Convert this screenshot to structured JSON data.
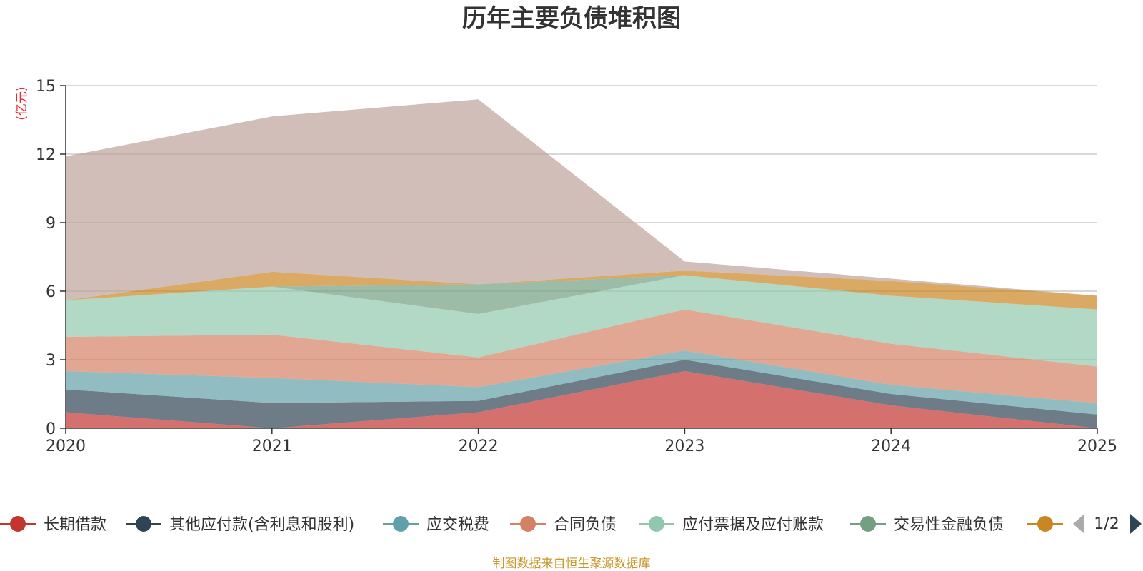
{
  "chart_data": {
    "type": "area",
    "stacked": true,
    "title": "历年主要负债堆积图",
    "unit_label": "(亿元)",
    "x": [
      "2020",
      "2021",
      "2022",
      "2023",
      "2024",
      "2025"
    ],
    "yticks": [
      "0",
      "3",
      "6",
      "9",
      "12",
      "15"
    ],
    "ylim": [
      0,
      15
    ],
    "grid": true,
    "series": [
      {
        "name": "长期借款",
        "color": "#c23531",
        "values": [
          0.7,
          0.0,
          0.7,
          2.5,
          1.0,
          0.0
        ]
      },
      {
        "name": "其他应付款(含利息和股利)",
        "color": "#2f4554",
        "values": [
          1.0,
          1.1,
          0.5,
          0.5,
          0.5,
          0.6
        ]
      },
      {
        "name": "应交税费",
        "color": "#61a0a8",
        "values": [
          0.8,
          1.1,
          0.6,
          0.4,
          0.4,
          0.5
        ]
      },
      {
        "name": "合同负债",
        "color": "#d48265",
        "values": [
          1.5,
          1.9,
          1.3,
          1.8,
          1.8,
          1.6
        ]
      },
      {
        "name": "应付票据及应付账款",
        "color": "#91c7ae",
        "values": [
          1.6,
          2.1,
          1.9,
          1.5,
          2.1,
          2.5
        ]
      },
      {
        "name": "交易性金融负债",
        "color": "#749f83",
        "values": [
          0.0,
          0.0,
          1.3,
          0.0,
          0.0,
          0.0
        ]
      },
      {
        "name": "",
        "color": "#ca8622",
        "values": [
          0.0,
          0.65,
          0.0,
          0.2,
          0.65,
          0.6
        ]
      },
      {
        "name": "",
        "color": "#bda29a",
        "values": [
          6.3,
          6.8,
          8.1,
          0.4,
          0.1,
          0.0
        ]
      }
    ],
    "legend": {
      "placement": "bottom",
      "visible_items": [
        "长期借款",
        "其他应付款(含利息和股利)",
        "应交税费",
        "合同负债",
        "应付票据及应付账款",
        "交易性金融负债",
        ""
      ],
      "page": "1/2"
    },
    "source": "制图数据来自恒生聚源数据库"
  }
}
